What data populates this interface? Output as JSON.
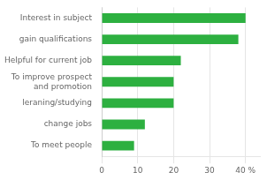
{
  "chart_data": {
    "type": "bar",
    "orientation": "horizontal",
    "categories": [
      "To meet people",
      "change jobs",
      "leraning/studying",
      "To improve prospect\nand promotion",
      "Helpful for current job",
      "gain qualifications",
      "Interest in subject"
    ],
    "values": [
      9,
      12,
      20,
      20,
      22,
      38,
      40
    ],
    "color": "#2db040",
    "xlim": [
      0,
      44
    ],
    "xticks": [
      0,
      10,
      20,
      30,
      {
        "value": 40,
        "label": "40 %"
      }
    ],
    "grid": true
  }
}
